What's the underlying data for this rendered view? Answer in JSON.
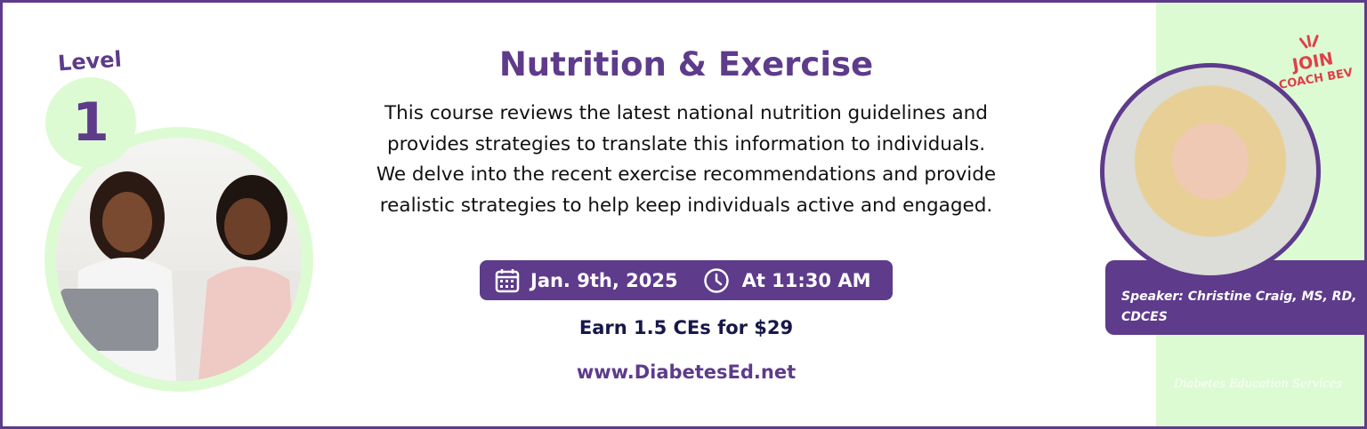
{
  "level": {
    "label": "Level",
    "number": "1"
  },
  "title": "Nutrition & Exercise",
  "description": "This course reviews the latest national nutrition guidelines and provides strategies to translate this information to individuals. We delve into the recent exercise recommendations and provide realistic strategies to help keep individuals active and engaged.",
  "event": {
    "date": "Jan. 9th, 2025",
    "time": "At 11:30 AM",
    "date_icon": "calendar-icon",
    "time_icon": "clock-icon"
  },
  "earn": "Earn 1.5 CEs for $29",
  "url": "www.DiabetesEd.net",
  "join": {
    "line1": "JOIN",
    "line2": "COACH BEV"
  },
  "speaker": "Speaker: Christine Craig, MS, RD, CDCES",
  "logo": "Diabetes Education Services",
  "colors": {
    "purple": "#5e3b8b",
    "green": "#ddfbd3",
    "navy": "#17174a",
    "red": "#e0404a"
  }
}
